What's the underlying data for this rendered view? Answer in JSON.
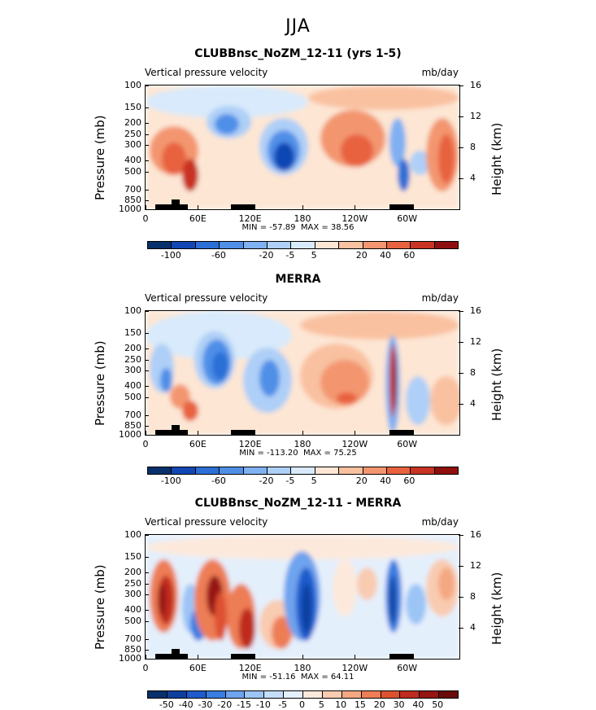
{
  "season": "JJA",
  "colors": {
    "div12": [
      "#08306b",
      "#1146b4",
      "#2b6fd6",
      "#4f8fe8",
      "#7fb0f2",
      "#aecff7",
      "#d8eafb",
      "#fde6d4",
      "#f9c1a0",
      "#f39670",
      "#e8623f",
      "#c83324",
      "#8f0f0f"
    ],
    "div16": [
      "#08306b",
      "#0f3f9e",
      "#1f5bcc",
      "#3a7de0",
      "#6ea3ee",
      "#9cc4f5",
      "#c6ddf9",
      "#e4effc",
      "#fde9dc",
      "#f9cbb0",
      "#f4a882",
      "#ed7d55",
      "#de5130",
      "#c02b1f",
      "#961414",
      "#6b0a0a"
    ]
  },
  "panels": [
    {
      "title": "CLUBBnsc_NoZM_12-11 (yrs 1-5)",
      "field": "Vertical pressure velocity",
      "units": "mb/day",
      "min": "MIN = -57.89",
      "max": "MAX =  38.56",
      "cb_labels": [
        "-100",
        "-60",
        "-20",
        "-5",
        "5",
        "20",
        "40",
        "60"
      ]
    },
    {
      "title": "MERRA",
      "field": "Vertical pressure velocity",
      "units": "mb/day",
      "min": "MIN = -113.20",
      "max": "MAX =  75.25",
      "cb_labels": [
        "-100",
        "-60",
        "-20",
        "-5",
        "5",
        "20",
        "40",
        "60"
      ]
    },
    {
      "title": "CLUBBnsc_NoZM_12-11 - MERRA",
      "field": "Vertical pressure velocity",
      "units": "mb/day",
      "min": "MIN = -51.16",
      "max": "MAX =  64.11",
      "cb_labels": [
        "-50",
        "-40",
        "-30",
        "-20",
        "-15",
        "-10",
        "-5",
        "0",
        "5",
        "10",
        "15",
        "20",
        "30",
        "40",
        "50"
      ]
    }
  ],
  "chart_data": {
    "type": "heatmap",
    "ylabel_left": "Pressure (mb)",
    "ylabel_right": "Height (km)",
    "y_ticks_left": [
      "100",
      "150",
      "200",
      "250",
      "300",
      "400",
      "500",
      "700",
      "850",
      "1000"
    ],
    "y_ticks_right": [
      "16",
      "12",
      "8",
      "4"
    ],
    "x_ticks": [
      "0",
      "60E",
      "120E",
      "180",
      "120W",
      "60W"
    ],
    "ylim": [
      1000,
      100
    ],
    "xlim": [
      0,
      360
    ]
  }
}
